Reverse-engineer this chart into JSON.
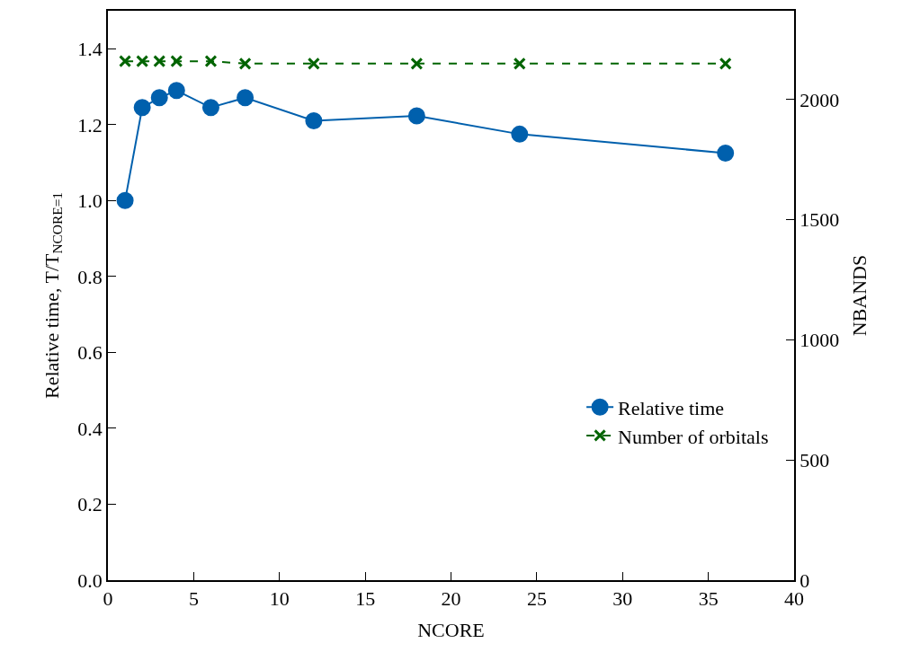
{
  "chart_data": {
    "type": "line",
    "xlabel": "NCORE",
    "ylabel": "Relative time, T/T$_{NCORE=1}$",
    "y2label": "NBANDS",
    "x": [
      1,
      2,
      3,
      4,
      6,
      8,
      12,
      18,
      24,
      36
    ],
    "series": [
      {
        "name": "Relative time",
        "color": "#0060ad",
        "values": [
          1.0,
          1.245,
          1.271,
          1.29,
          1.245,
          1.271,
          1.21,
          1.223,
          1.175,
          1.125
        ],
        "marker": "circle",
        "line_style": "solid"
      },
      {
        "name": "Number of orbitals",
        "color": "#006400",
        "values": [
          2160,
          2160,
          2160,
          2160,
          2160,
          2150,
          2150,
          2150,
          2150,
          2150
        ],
        "marker": "cross",
        "line_style": "dashed",
        "axis": "y2"
      }
    ],
    "xlim": [
      0,
      40
    ],
    "xticks": [
      0,
      5,
      10,
      15,
      20,
      25,
      30,
      35,
      40
    ],
    "ylim": [
      0,
      1.5
    ],
    "yticks": [
      {
        "value": 0,
        "label": "0.0"
      },
      0.2,
      0.4,
      0.6,
      0.8,
      {
        "value": 1,
        "label": "1.0"
      },
      1.2,
      1.4
    ],
    "y2lim": [
      0,
      2370
    ],
    "y2ticks": [
      0,
      500,
      1000,
      1500,
      2000
    ],
    "legend": "bottom right"
  }
}
